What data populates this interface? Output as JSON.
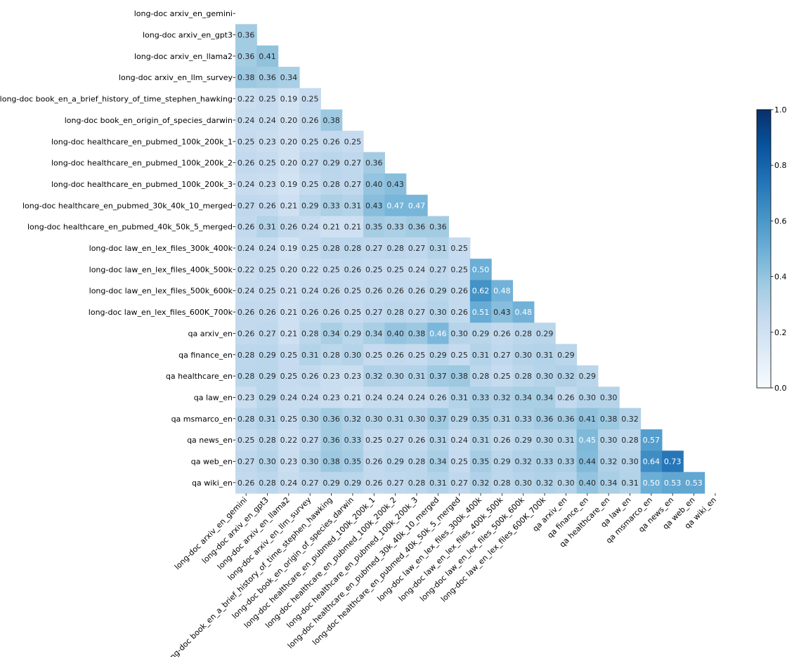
{
  "chart_data": {
    "type": "heatmap",
    "title": "",
    "xlabel": "",
    "ylabel": "",
    "lower_triangle_only": true,
    "color_scale": {
      "min": 0.0,
      "max": 1.0,
      "low_color": "#f7fbff",
      "high_color": "#08306b",
      "name": "Blues"
    },
    "colorbar_ticks": [
      "0.0",
      "0.2",
      "0.4",
      "0.6",
      "0.8",
      "1.0"
    ],
    "labels": [
      "long-doc arxiv_en_gemini",
      "long-doc arxiv_en_gpt3",
      "long-doc arxiv_en_llama2",
      "long-doc arxiv_en_llm_survey",
      "long-doc book_en_a_brief_history_of_time_stephen_hawking",
      "long-doc book_en_origin_of_species_darwin",
      "long-doc healthcare_en_pubmed_100k_200k_1",
      "long-doc healthcare_en_pubmed_100k_200k_2",
      "long-doc healthcare_en_pubmed_100k_200k_3",
      "long-doc healthcare_en_pubmed_30k_40k_10_merged",
      "long-doc healthcare_en_pubmed_40k_50k_5_merged",
      "long-doc law_en_lex_files_300k_400k",
      "long-doc law_en_lex_files_400k_500k",
      "long-doc law_en_lex_files_500k_600k",
      "long-doc law_en_lex_files_600K_700k",
      "qa arxiv_en",
      "qa finance_en",
      "qa healthcare_en",
      "qa law_en",
      "qa msmarco_en",
      "qa news_en",
      "qa web_en",
      "qa wiki_en"
    ],
    "values": [
      [],
      [
        0.36
      ],
      [
        0.36,
        0.41
      ],
      [
        0.38,
        0.36,
        0.34
      ],
      [
        0.22,
        0.25,
        0.19,
        0.25
      ],
      [
        0.24,
        0.24,
        0.2,
        0.26,
        0.38
      ],
      [
        0.25,
        0.23,
        0.2,
        0.25,
        0.26,
        0.25
      ],
      [
        0.26,
        0.25,
        0.2,
        0.27,
        0.29,
        0.27,
        0.36
      ],
      [
        0.24,
        0.23,
        0.19,
        0.25,
        0.28,
        0.27,
        0.4,
        0.43
      ],
      [
        0.27,
        0.26,
        0.21,
        0.29,
        0.33,
        0.31,
        0.43,
        0.47,
        0.47
      ],
      [
        0.26,
        0.31,
        0.26,
        0.24,
        0.21,
        0.21,
        0.35,
        0.33,
        0.36,
        0.36
      ],
      [
        0.24,
        0.24,
        0.19,
        0.25,
        0.28,
        0.28,
        0.27,
        0.28,
        0.27,
        0.31,
        0.25
      ],
      [
        0.22,
        0.25,
        0.2,
        0.22,
        0.25,
        0.26,
        0.25,
        0.25,
        0.24,
        0.27,
        0.25,
        0.5
      ],
      [
        0.24,
        0.25,
        0.21,
        0.24,
        0.26,
        0.25,
        0.26,
        0.26,
        0.26,
        0.29,
        0.26,
        0.62,
        0.48
      ],
      [
        0.26,
        0.26,
        0.21,
        0.26,
        0.26,
        0.25,
        0.27,
        0.28,
        0.27,
        0.3,
        0.26,
        0.51,
        0.43,
        0.48
      ],
      [
        0.26,
        0.27,
        0.21,
        0.28,
        0.34,
        0.29,
        0.34,
        0.4,
        0.38,
        0.46,
        0.3,
        0.29,
        0.26,
        0.28,
        0.29
      ],
      [
        0.28,
        0.29,
        0.25,
        0.31,
        0.28,
        0.3,
        0.25,
        0.26,
        0.25,
        0.29,
        0.25,
        0.31,
        0.27,
        0.3,
        0.31,
        0.29
      ],
      [
        0.28,
        0.29,
        0.25,
        0.26,
        0.23,
        0.23,
        0.32,
        0.3,
        0.31,
        0.37,
        0.38,
        0.28,
        0.25,
        0.28,
        0.3,
        0.32,
        0.29
      ],
      [
        0.23,
        0.29,
        0.24,
        0.24,
        0.23,
        0.21,
        0.24,
        0.24,
        0.24,
        0.26,
        0.31,
        0.33,
        0.32,
        0.34,
        0.34,
        0.26,
        0.3,
        0.3
      ],
      [
        0.28,
        0.31,
        0.25,
        0.3,
        0.36,
        0.32,
        0.3,
        0.31,
        0.3,
        0.37,
        0.29,
        0.35,
        0.31,
        0.33,
        0.36,
        0.36,
        0.41,
        0.38,
        0.32
      ],
      [
        0.25,
        0.28,
        0.22,
        0.27,
        0.36,
        0.33,
        0.25,
        0.27,
        0.26,
        0.31,
        0.24,
        0.31,
        0.26,
        0.29,
        0.3,
        0.31,
        0.45,
        0.3,
        0.28,
        0.57
      ],
      [
        0.27,
        0.3,
        0.23,
        0.3,
        0.38,
        0.35,
        0.26,
        0.29,
        0.28,
        0.34,
        0.25,
        0.35,
        0.29,
        0.32,
        0.33,
        0.33,
        0.44,
        0.32,
        0.3,
        0.64,
        0.73
      ],
      [
        0.26,
        0.28,
        0.24,
        0.27,
        0.29,
        0.29,
        0.26,
        0.27,
        0.28,
        0.31,
        0.27,
        0.32,
        0.28,
        0.3,
        0.32,
        0.3,
        0.4,
        0.34,
        0.31,
        0.5,
        0.53,
        0.53
      ]
    ]
  }
}
